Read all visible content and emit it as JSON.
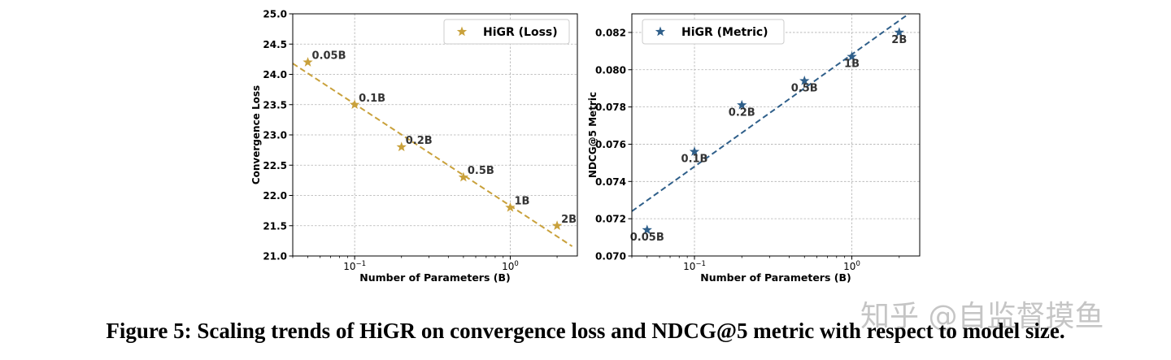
{
  "caption": "Figure 5: Scaling trends of HiGR on convergence loss and NDCG@5 metric with respect to model size.",
  "watermark": "知乎 @自监督摸鱼",
  "chart_data": [
    {
      "type": "scatter",
      "x_scale": "log",
      "xlabel": "Number of Parameters (B)",
      "ylabel": "Convergence Loss",
      "xlim": [
        0.04,
        2.7
      ],
      "ylim": [
        21.0,
        25.0
      ],
      "xticks": [
        {
          "value": 0.1,
          "base": "10",
          "exp": "−1"
        },
        {
          "value": 1,
          "base": "10",
          "exp": "0"
        }
      ],
      "yticks": [
        "21.0",
        "21.5",
        "22.0",
        "22.5",
        "23.0",
        "23.5",
        "24.0",
        "24.5",
        "25.0"
      ],
      "grid": true,
      "legend_position": "top-right",
      "color": "#c9a13b",
      "series": [
        {
          "name": "HiGR (Loss)",
          "x": [
            0.05,
            0.1,
            0.2,
            0.5,
            1,
            2
          ],
          "y": [
            24.2,
            23.5,
            22.8,
            22.3,
            21.8,
            21.5
          ],
          "labels": [
            "0.05B",
            "0.1B",
            "0.2B",
            "0.5B",
            "1B",
            "2B"
          ]
        }
      ],
      "trend_line": {
        "x": [
          0.04,
          2.5
        ],
        "y": [
          24.18,
          21.16
        ]
      }
    },
    {
      "type": "scatter",
      "x_scale": "log",
      "xlabel": "Number of Parameters (B)",
      "ylabel": "NDCG@5 Metric",
      "xlim": [
        0.04,
        2.7
      ],
      "ylim": [
        0.07,
        0.083
      ],
      "xticks": [
        {
          "value": 0.1,
          "base": "10",
          "exp": "−1"
        },
        {
          "value": 1,
          "base": "10",
          "exp": "0"
        }
      ],
      "yticks": [
        "0.070",
        "0.072",
        "0.074",
        "0.076",
        "0.078",
        "0.080",
        "0.082"
      ],
      "grid": true,
      "legend_position": "top-left",
      "color": "#2f5f8a",
      "series": [
        {
          "name": "HiGR (Metric)",
          "x": [
            0.05,
            0.1,
            0.2,
            0.5,
            1,
            2
          ],
          "y": [
            0.0714,
            0.0756,
            0.0781,
            0.0794,
            0.0807,
            0.082
          ],
          "labels": [
            "0.05B",
            "0.1B",
            "0.2B",
            "0.5B",
            "1B",
            "2B"
          ]
        }
      ],
      "trend_line": {
        "x": [
          0.04,
          2.3
        ],
        "y": [
          0.0724,
          0.083
        ]
      }
    }
  ]
}
